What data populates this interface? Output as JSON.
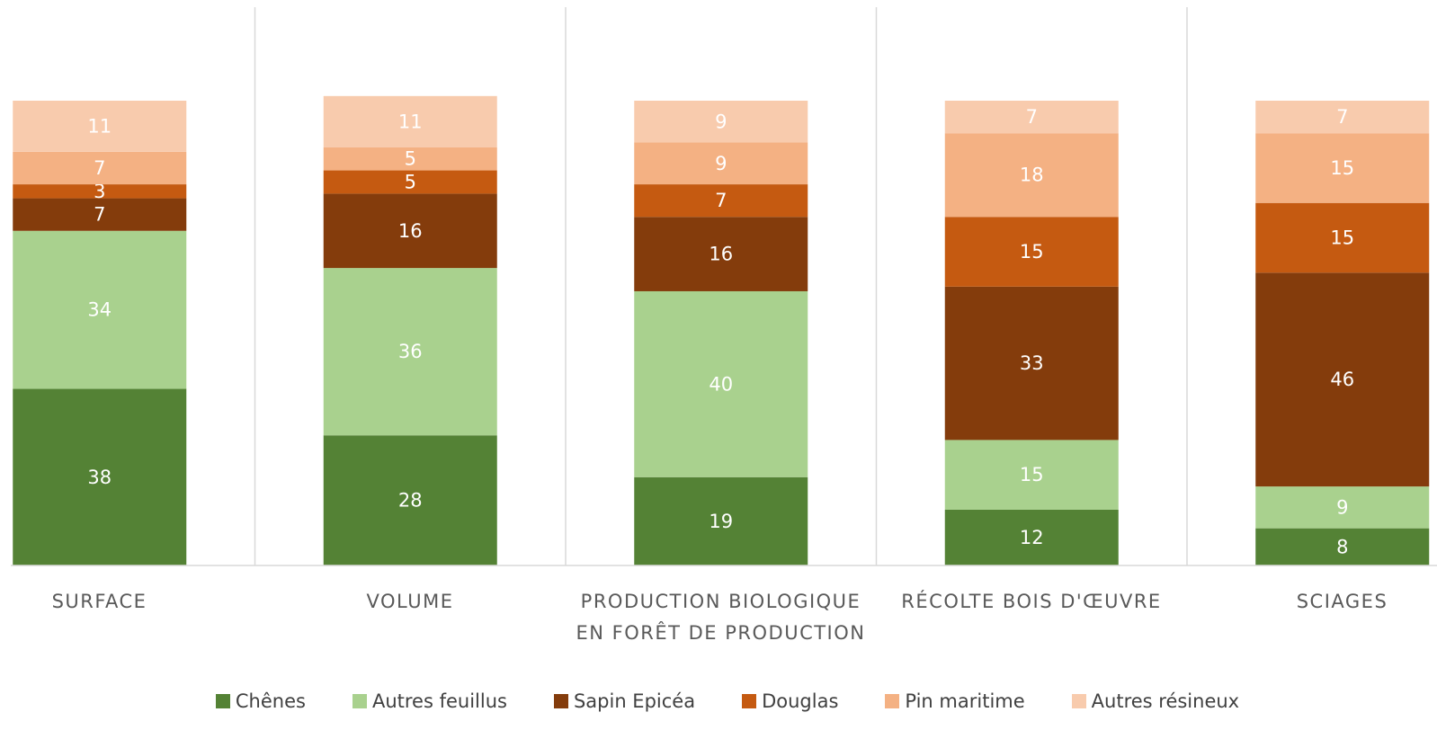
{
  "chart_data": {
    "type": "stacked_bar",
    "categories": [
      "SURFACE",
      "VOLUME",
      "PRODUCTION BIOLOGIQUE EN FORÊT DE PRODUCTION",
      "RÉCOLTE BOIS D'ŒUVRE",
      "SCIAGES"
    ],
    "series": [
      {
        "name": "Chênes",
        "color": "#548235",
        "values": [
          38,
          28,
          19,
          12,
          8
        ]
      },
      {
        "name": "Autres feuillus",
        "color": "#a9d18e",
        "values": [
          34,
          36,
          40,
          15,
          9
        ]
      },
      {
        "name": "Sapin Epicéa",
        "color": "#843c0c",
        "values": [
          7,
          16,
          16,
          33,
          46
        ]
      },
      {
        "name": "Douglas",
        "color": "#c55a11",
        "values": [
          3,
          5,
          7,
          15,
          15
        ]
      },
      {
        "name": "Pin maritime",
        "color": "#f4b183",
        "values": [
          7,
          5,
          9,
          18,
          15
        ]
      },
      {
        "name": "Autres résineux",
        "color": "#f8cbad",
        "values": [
          11,
          11,
          9,
          7,
          7
        ]
      }
    ],
    "legend": "bottom"
  }
}
